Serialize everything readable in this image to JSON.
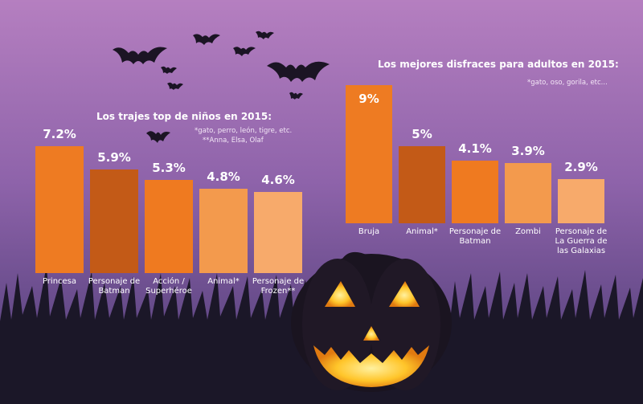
{
  "colors": {
    "bg_top": "#b57fc0",
    "bg_bottom": "#4a3a73",
    "grass": "#1b1728",
    "pumpkin_dark": "#1a1420",
    "pumpkin_glow": "#ffd23a",
    "bar_shades": [
      "#ee7b22",
      "#c35a17",
      "#ef7a20",
      "#f39a4d",
      "#f7aa6b"
    ]
  },
  "chart_data": [
    {
      "type": "bar",
      "title": "Los trajes top de niños en 2015:",
      "notes": [
        "*gato, perro, león, tigre, etc.",
        "**Anna, Elsa, Olaf"
      ],
      "categories": [
        [
          "Princesa"
        ],
        [
          "Personaje de",
          "Batman"
        ],
        [
          "Acción /",
          "Superhéroe"
        ],
        [
          "Animal*"
        ],
        [
          "Personaje de",
          "Frozen**"
        ]
      ],
      "values": [
        7.2,
        5.9,
        5.3,
        4.8,
        4.6
      ],
      "value_labels": [
        "7.2%",
        "5.9%",
        "5.3%",
        "4.8%",
        "4.6%"
      ],
      "ylim": [
        0,
        7.2
      ],
      "grid": false,
      "legend": "none"
    },
    {
      "type": "bar",
      "title": "Los mejores disfraces para adultos en 2015:",
      "notes": [
        "*gato, oso, gorila, etc..."
      ],
      "categories": [
        [
          "Bruja"
        ],
        [
          "Animal*"
        ],
        [
          "Personaje de",
          "Batman"
        ],
        [
          "Zombi"
        ],
        [
          "Personaje de",
          "La Guerra de",
          "las Galaxias"
        ]
      ],
      "values": [
        9,
        5,
        4.1,
        3.9,
        2.9
      ],
      "value_labels": [
        "9%",
        "5%",
        "4.1%",
        "3.9%",
        "2.9%"
      ],
      "ylim": [
        0,
        9
      ],
      "grid": false,
      "legend": "none"
    }
  ]
}
